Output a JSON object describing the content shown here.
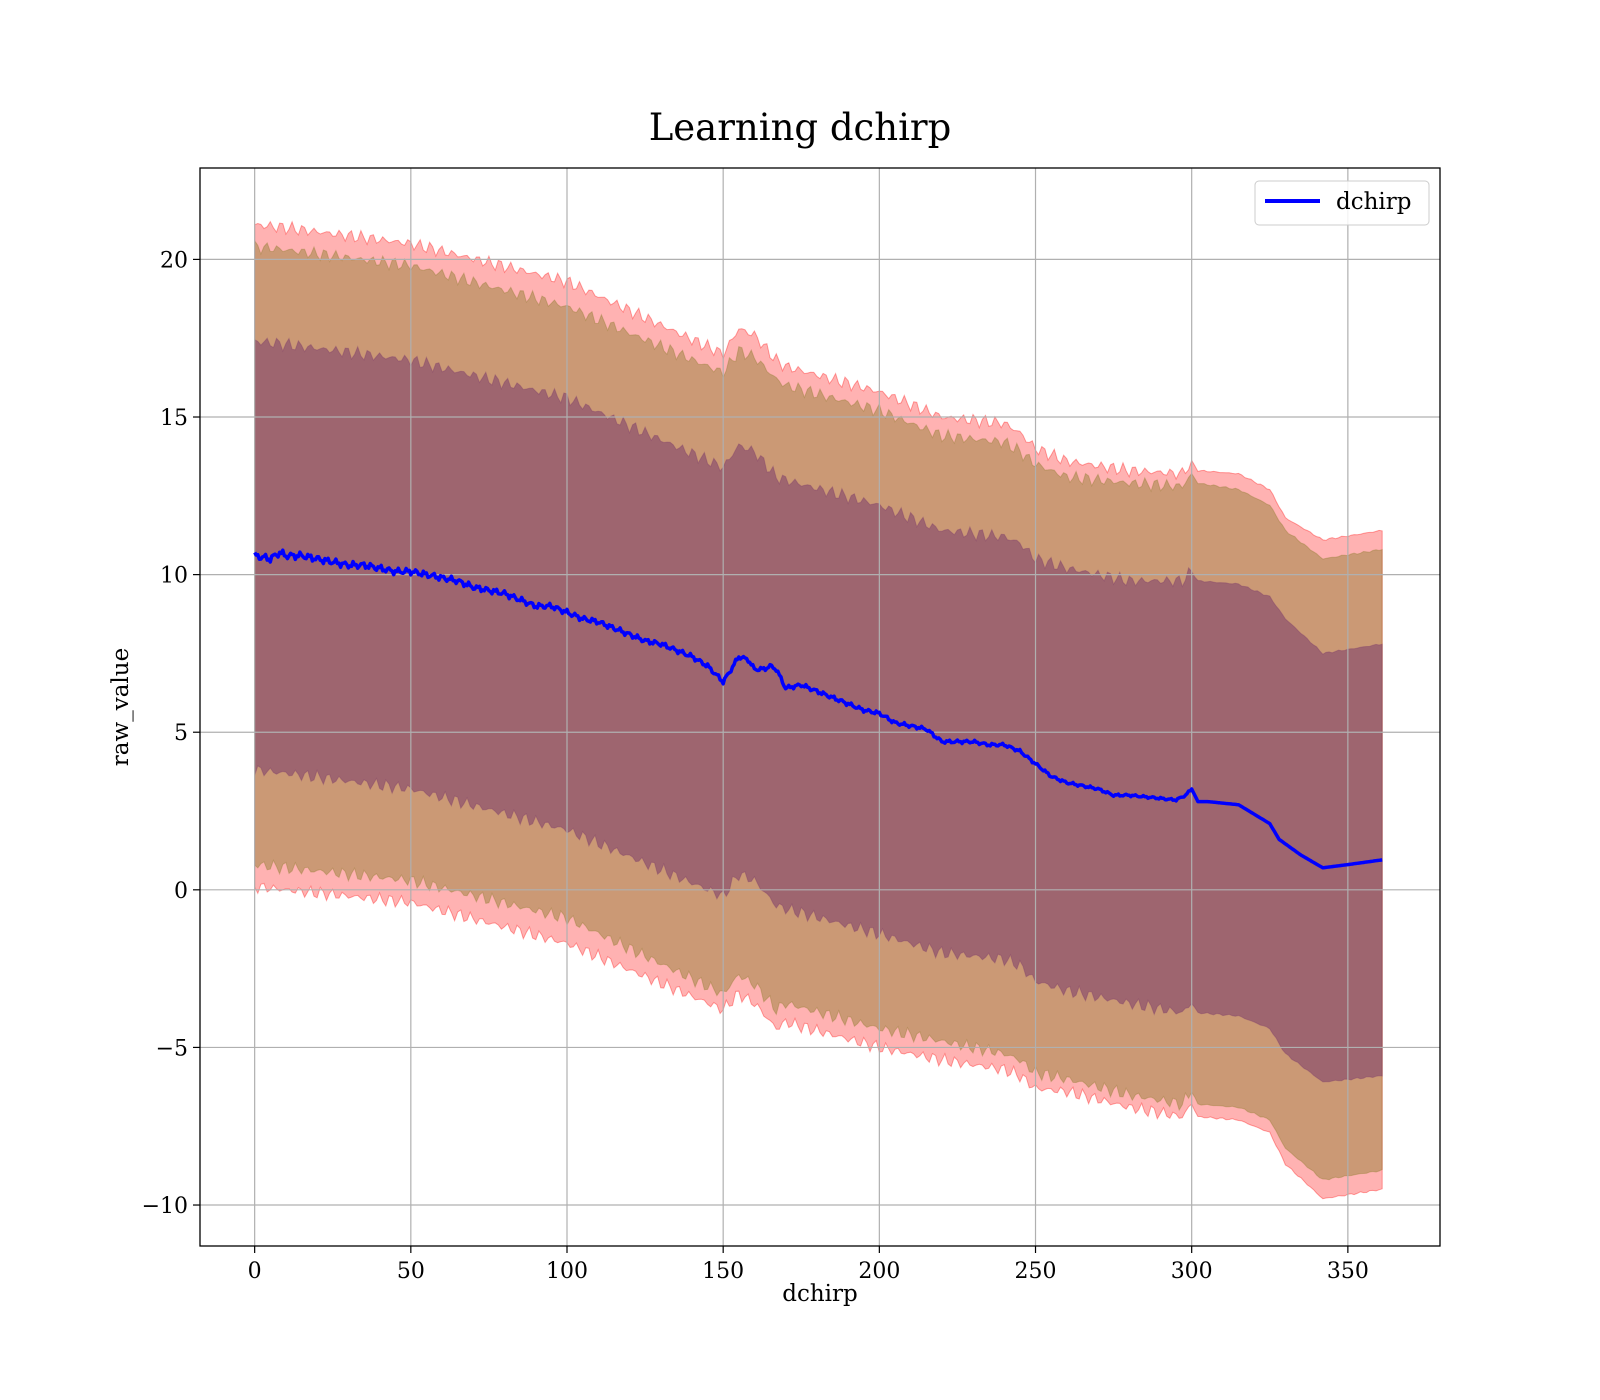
{
  "chart_data": {
    "type": "line",
    "title": "Learning dchirp",
    "xlabel": "dchirp",
    "ylabel": "raw_value",
    "xlim": [
      -17.5,
      379.5
    ],
    "ylim": [
      -11.3,
      22.9
    ],
    "x_ticks": [
      0,
      50,
      100,
      150,
      200,
      250,
      300,
      350
    ],
    "y_ticks": [
      -10,
      -5,
      0,
      5,
      10,
      15,
      20
    ],
    "y_tick_labels": [
      "−10",
      "−5",
      "0",
      "5",
      "10",
      "15",
      "20"
    ],
    "grid": true,
    "legend": {
      "position": "upper-right",
      "entries": [
        "dchirp"
      ]
    },
    "colors": {
      "mean_line": "#0000ff",
      "band_outer": "#ff0000",
      "band_middle": "#8b7a2a",
      "band_inner": "#7a3a6a",
      "grid": "#b0b0b0"
    },
    "series": [
      {
        "name": "dchirp",
        "x": [
          0,
          5,
          8,
          10,
          15,
          20,
          25,
          30,
          35,
          40,
          45,
          50,
          55,
          60,
          65,
          70,
          75,
          80,
          85,
          90,
          95,
          100,
          105,
          110,
          115,
          120,
          125,
          130,
          135,
          140,
          145,
          148,
          150,
          152,
          155,
          158,
          160,
          163,
          165,
          167,
          170,
          175,
          180,
          185,
          190,
          195,
          200,
          205,
          210,
          215,
          220,
          225,
          230,
          235,
          240,
          245,
          250,
          255,
          260,
          265,
          270,
          275,
          280,
          285,
          290,
          295,
          298,
          300,
          302,
          305,
          310,
          315,
          320,
          325,
          328,
          335,
          342,
          350,
          361
        ],
        "y": [
          10.6,
          10.5,
          10.7,
          10.6,
          10.6,
          10.5,
          10.4,
          10.3,
          10.3,
          10.2,
          10.1,
          10.1,
          10.0,
          9.9,
          9.8,
          9.6,
          9.5,
          9.4,
          9.2,
          9.0,
          9.0,
          8.8,
          8.6,
          8.5,
          8.3,
          8.1,
          7.9,
          7.8,
          7.6,
          7.4,
          7.1,
          6.8,
          6.6,
          6.9,
          7.4,
          7.3,
          7.0,
          7.0,
          7.1,
          7.0,
          6.4,
          6.5,
          6.3,
          6.1,
          5.9,
          5.7,
          5.6,
          5.3,
          5.2,
          5.1,
          4.7,
          4.7,
          4.7,
          4.6,
          4.6,
          4.4,
          4.0,
          3.6,
          3.4,
          3.3,
          3.2,
          3.0,
          3.0,
          2.95,
          2.9,
          2.85,
          3.0,
          3.2,
          2.8,
          2.8,
          2.75,
          2.7,
          2.4,
          2.1,
          1.6,
          1.1,
          0.7,
          0.8,
          0.95
        ]
      }
    ],
    "bands": [
      {
        "level": "outer",
        "x": [
          0,
          10,
          50,
          100,
          150,
          155,
          160,
          167,
          170,
          200,
          220,
          240,
          245,
          250,
          260,
          280,
          297,
          300,
          302,
          315,
          325,
          330,
          342,
          361
        ],
        "upper": [
          21.1,
          21.0,
          20.5,
          19.3,
          17.0,
          17.8,
          17.6,
          16.8,
          16.6,
          15.8,
          15.0,
          14.8,
          14.5,
          14.0,
          13.6,
          13.3,
          13.2,
          13.6,
          13.3,
          13.2,
          12.7,
          11.8,
          11.1,
          11.4
        ],
        "lower": [
          0.1,
          0.0,
          -0.4,
          -1.7,
          -3.8,
          -3.3,
          -3.6,
          -4.4,
          -4.2,
          -5.0,
          -5.4,
          -5.7,
          -5.9,
          -6.3,
          -6.4,
          -6.9,
          -7.2,
          -6.8,
          -7.2,
          -7.3,
          -7.7,
          -8.7,
          -9.8,
          -9.5
        ]
      },
      {
        "level": "middle",
        "x": [
          0,
          10,
          50,
          100,
          150,
          155,
          160,
          167,
          170,
          200,
          220,
          240,
          245,
          250,
          260,
          280,
          297,
          300,
          302,
          315,
          325,
          330,
          342,
          361
        ],
        "upper": [
          20.4,
          20.3,
          19.8,
          18.5,
          16.4,
          17.1,
          16.9,
          16.2,
          16.0,
          15.2,
          14.4,
          14.2,
          13.9,
          13.5,
          13.1,
          12.9,
          12.8,
          13.2,
          12.9,
          12.7,
          12.2,
          11.4,
          10.5,
          10.8
        ],
        "lower": [
          0.8,
          0.7,
          0.3,
          -0.9,
          -3.3,
          -2.7,
          -3.0,
          -3.8,
          -3.6,
          -4.4,
          -4.8,
          -5.2,
          -5.4,
          -5.8,
          -6.0,
          -6.5,
          -6.8,
          -6.4,
          -6.8,
          -6.9,
          -7.3,
          -8.2,
          -9.2,
          -8.9
        ]
      },
      {
        "level": "inner",
        "x": [
          0,
          10,
          50,
          100,
          150,
          155,
          160,
          167,
          170,
          200,
          220,
          240,
          245,
          250,
          260,
          280,
          297,
          300,
          302,
          315,
          325,
          330,
          342,
          361
        ],
        "upper": [
          17.4,
          17.3,
          16.8,
          15.6,
          13.4,
          14.1,
          13.9,
          13.1,
          13.0,
          12.2,
          11.4,
          11.2,
          11.0,
          10.5,
          10.2,
          9.8,
          9.8,
          10.1,
          9.8,
          9.7,
          9.3,
          8.6,
          7.5,
          7.8
        ],
        "lower": [
          3.8,
          3.7,
          3.2,
          1.9,
          -0.2,
          0.5,
          0.3,
          -0.5,
          -0.6,
          -1.4,
          -2.0,
          -2.2,
          -2.4,
          -2.9,
          -3.2,
          -3.6,
          -3.9,
          -3.6,
          -3.9,
          -4.0,
          -4.4,
          -5.2,
          -6.1,
          -5.9
        ]
      }
    ]
  }
}
